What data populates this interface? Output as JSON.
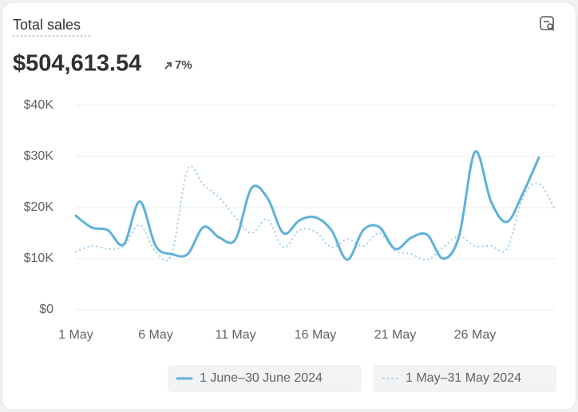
{
  "chart_data": {
    "type": "line",
    "title": "Total sales",
    "summary_value": "$504,613.54",
    "change": "7%",
    "categories": [
      "1 May",
      null,
      null,
      null,
      null,
      "6 May",
      null,
      null,
      null,
      null,
      "11 May",
      null,
      null,
      null,
      null,
      "16 May",
      null,
      null,
      null,
      null,
      "21 May",
      null,
      null,
      null,
      null,
      "26 May",
      null,
      null,
      null,
      null,
      null
    ],
    "series": [
      {
        "name": "1 June–30 June 2024",
        "color": "#5eb1d9",
        "style": "solid",
        "values": [
          18400,
          16100,
          15600,
          12800,
          21200,
          12500,
          10900,
          10900,
          16200,
          14100,
          13800,
          23800,
          21900,
          15000,
          17500,
          18100,
          15600,
          9800,
          15600,
          16200,
          11900,
          14100,
          14700,
          10000,
          14400,
          30900,
          21200,
          17200,
          22800,
          29800,
          null
        ]
      },
      {
        "name": "1 May–31 May 2024",
        "color": "#9fd0e8",
        "style": "dotted",
        "values": [
          11400,
          12500,
          11900,
          12500,
          16600,
          11400,
          10900,
          27500,
          24400,
          21900,
          18100,
          15000,
          17700,
          12200,
          15600,
          15300,
          12200,
          13800,
          12500,
          15000,
          11600,
          10900,
          9800,
          12200,
          14400,
          12500,
          12500,
          11900,
          21900,
          24700,
          19700
        ]
      }
    ],
    "ylim": [
      0,
      40000
    ],
    "yticks": [
      {
        "value": 0,
        "label": "$0"
      },
      {
        "value": 10000,
        "label": "$10K"
      },
      {
        "value": 20000,
        "label": "$20K"
      },
      {
        "value": 30000,
        "label": "$30K"
      },
      {
        "value": 40000,
        "label": "$40K"
      }
    ],
    "grid": true
  }
}
